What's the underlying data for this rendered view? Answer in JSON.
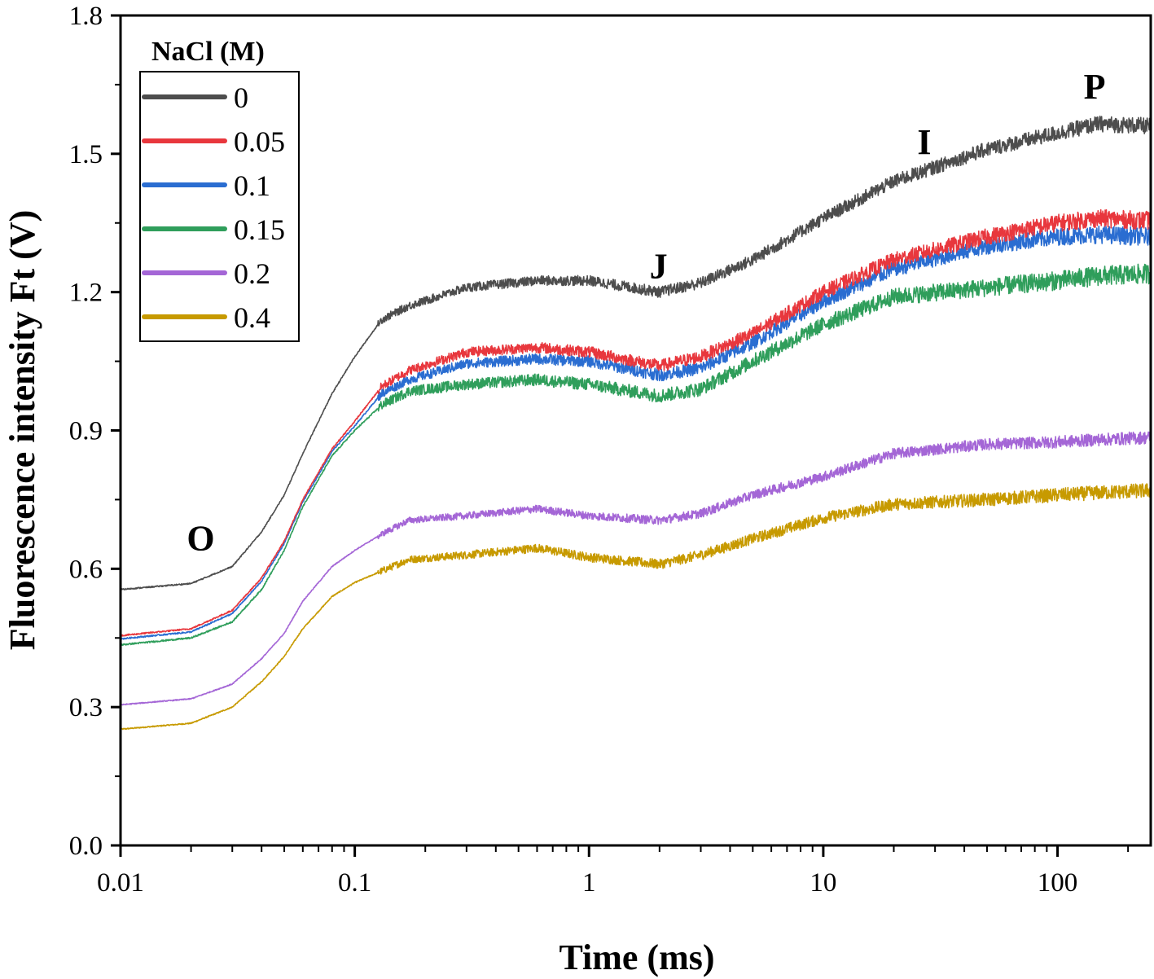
{
  "chart_data": {
    "type": "line",
    "title": "",
    "xlabel": "Time (ms)",
    "ylabel": "Fluorescence intensity Ft (V)",
    "xscale": "log",
    "xlim": [
      0.01,
      250
    ],
    "ylim": [
      0.0,
      1.8
    ],
    "xticks": [
      0.01,
      0.1,
      1,
      10,
      100
    ],
    "xtick_labels": [
      "0.01",
      "0.1",
      "1",
      "10",
      "100"
    ],
    "yticks": [
      0.0,
      0.3,
      0.6,
      0.9,
      1.2,
      1.5,
      1.8
    ],
    "ytick_labels": [
      "0.0",
      "0.3",
      "0.6",
      "0.9",
      "1.2",
      "1.5",
      "1.8"
    ],
    "grid": false,
    "legend": {
      "title": "NaCl (M)",
      "placement": "top-left"
    },
    "x": [
      0.01,
      0.02,
      0.03,
      0.04,
      0.05,
      0.06,
      0.08,
      0.1,
      0.13,
      0.17,
      0.3,
      0.6,
      1,
      2,
      3,
      5,
      10,
      20,
      50,
      100,
      150,
      250
    ],
    "series": [
      {
        "name": "0",
        "color": "#4d4d4d",
        "width": 4,
        "noise": 0.009,
        "values": [
          0.555,
          0.568,
          0.605,
          0.68,
          0.76,
          0.85,
          0.98,
          1.06,
          1.14,
          1.17,
          1.21,
          1.225,
          1.225,
          1.2,
          1.22,
          1.27,
          1.36,
          1.44,
          1.51,
          1.545,
          1.565,
          1.56
        ]
      },
      {
        "name": "0.05",
        "color": "#e8373d",
        "width": 4,
        "noise": 0.01,
        "values": [
          0.455,
          0.47,
          0.51,
          0.58,
          0.66,
          0.75,
          0.86,
          0.92,
          0.995,
          1.03,
          1.07,
          1.08,
          1.07,
          1.04,
          1.06,
          1.11,
          1.2,
          1.27,
          1.32,
          1.35,
          1.36,
          1.355
        ]
      },
      {
        "name": "0.1",
        "color": "#2a6dd1",
        "width": 4,
        "noise": 0.01,
        "values": [
          0.448,
          0.463,
          0.503,
          0.573,
          0.655,
          0.745,
          0.855,
          0.91,
          0.98,
          1.01,
          1.045,
          1.055,
          1.05,
          1.02,
          1.035,
          1.09,
          1.18,
          1.25,
          1.3,
          1.32,
          1.325,
          1.32
        ]
      },
      {
        "name": "0.15",
        "color": "#2f9e5b",
        "width": 4,
        "noise": 0.011,
        "values": [
          0.435,
          0.45,
          0.485,
          0.555,
          0.64,
          0.735,
          0.845,
          0.9,
          0.955,
          0.985,
          1.0,
          1.01,
          1.0,
          0.975,
          0.99,
          1.05,
          1.13,
          1.19,
          1.21,
          1.225,
          1.235,
          1.24
        ]
      },
      {
        "name": "0.2",
        "color": "#a466d6",
        "width": 4,
        "noise": 0.007,
        "values": [
          0.305,
          0.318,
          0.35,
          0.405,
          0.46,
          0.53,
          0.605,
          0.64,
          0.675,
          0.705,
          0.715,
          0.73,
          0.715,
          0.705,
          0.72,
          0.76,
          0.8,
          0.85,
          0.87,
          0.875,
          0.88,
          0.885
        ]
      },
      {
        "name": "0.4",
        "color": "#c79a00",
        "width": 4,
        "noise": 0.008,
        "values": [
          0.252,
          0.265,
          0.3,
          0.355,
          0.41,
          0.47,
          0.54,
          0.57,
          0.595,
          0.62,
          0.63,
          0.645,
          0.625,
          0.61,
          0.63,
          0.665,
          0.71,
          0.74,
          0.75,
          0.76,
          0.765,
          0.77
        ]
      }
    ],
    "annotations": [
      {
        "text": "O",
        "x": 0.022,
        "y": 0.64
      },
      {
        "text": "J",
        "x": 1.98,
        "y": 1.23
      },
      {
        "text": "I",
        "x": 27,
        "y": 1.5
      },
      {
        "text": "P",
        "x": 144,
        "y": 1.62
      }
    ]
  }
}
